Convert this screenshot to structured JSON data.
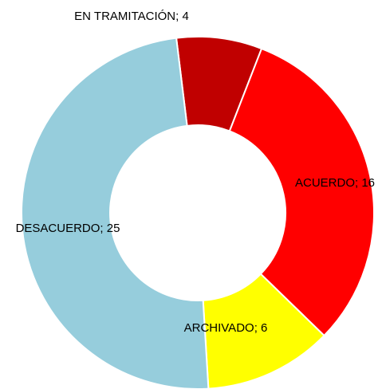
{
  "chart_data": {
    "type": "donut",
    "categories": [
      "EN TRAMITACIÓN",
      "ACUERDO",
      "ARCHIVADO",
      "DESACUERDO"
    ],
    "values": [
      4,
      16,
      6,
      25
    ],
    "value_labels": [
      "EN TRAMITACIÓN; 4",
      "ACUERDO; 16",
      "ARCHIVADO; 6",
      "DESACUERDO; 25"
    ],
    "colors": [
      "#c00000",
      "#ff0000",
      "#ffff00",
      "#96cddc"
    ]
  }
}
